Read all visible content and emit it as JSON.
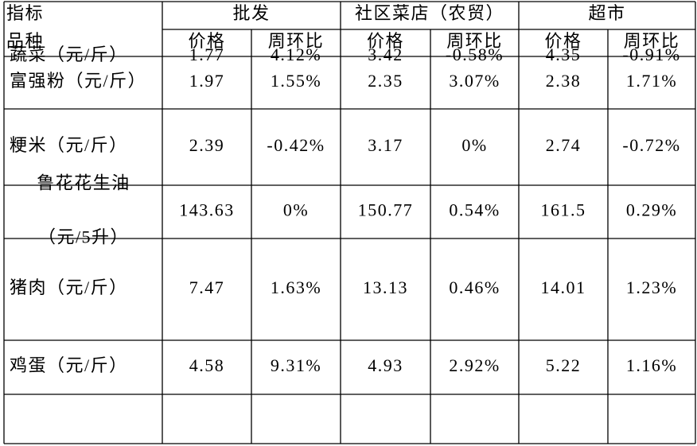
{
  "table": {
    "header": {
      "corner_top": "指标",
      "corner_bottom": "品种",
      "groups": [
        "批发",
        "社区菜店（农贸）",
        "超市"
      ],
      "columns": [
        "价格",
        "周环比",
        "价格",
        "周环比",
        "价格",
        "周环比"
      ]
    },
    "rows": [
      {
        "name": [
          "蔬菜（元/斤）"
        ],
        "cells": [
          "1.77",
          "4.12%",
          "3.42",
          "-0.58%",
          "4.35",
          "-0.91%"
        ]
      },
      {
        "name": [
          "富强粉（元/斤）"
        ],
        "cells": [
          "1.97",
          "1.55%",
          "2.35",
          "3.07%",
          "2.38",
          "1.71%"
        ]
      },
      {
        "name": [
          "粳米（元/斤）"
        ],
        "cells": [
          "2.39",
          "-0.42%",
          "3.17",
          "0%",
          "2.74",
          "-0.72%"
        ]
      },
      {
        "name": [
          "鲁花花生油",
          "（元/5升）"
        ],
        "cells": [
          "143.63",
          "0%",
          "150.77",
          "0.54%",
          "161.5",
          "0.29%"
        ]
      },
      {
        "name": [
          "猪肉（元/斤）"
        ],
        "cells": [
          "7.47",
          "1.63%",
          "13.13",
          "0.46%",
          "14.01",
          "1.23%"
        ]
      },
      {
        "name": [
          "鸡蛋（元/斤）"
        ],
        "cells": [
          "4.58",
          "9.31%",
          "4.93",
          "2.92%",
          "5.22",
          "1.16%"
        ]
      }
    ]
  }
}
